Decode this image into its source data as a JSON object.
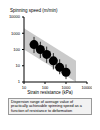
{
  "chart_data": {
    "type": "range",
    "y_label": "Spinning speed (m/min)",
    "x_label": "Strain resistance (kPa)",
    "caption": "Dispersion range of average value of practically achievable spinning speed as a function of resistance to deformation",
    "x": [
      30,
      60,
      120,
      250,
      500,
      1000
    ],
    "low": [
      60,
      30,
      15,
      6,
      3,
      1.5
    ],
    "high": [
      600,
      300,
      150,
      60,
      25,
      12
    ],
    "mean": [
      200,
      100,
      50,
      20,
      8,
      4
    ],
    "color": "#000000",
    "marker": "circle",
    "band": {
      "x": [
        10,
        3000
      ],
      "low": [
        100,
        1
      ],
      "high": [
        2000,
        20
      ],
      "color": "#bdbdbd"
    },
    "log": true,
    "grid": false,
    "xlim": [
      10,
      10000
    ],
    "ylim": [
      1,
      10000
    ],
    "xticks": [
      10,
      100,
      1000,
      10000
    ],
    "yticks": [
      1,
      10,
      100,
      1000,
      10000
    ]
  }
}
